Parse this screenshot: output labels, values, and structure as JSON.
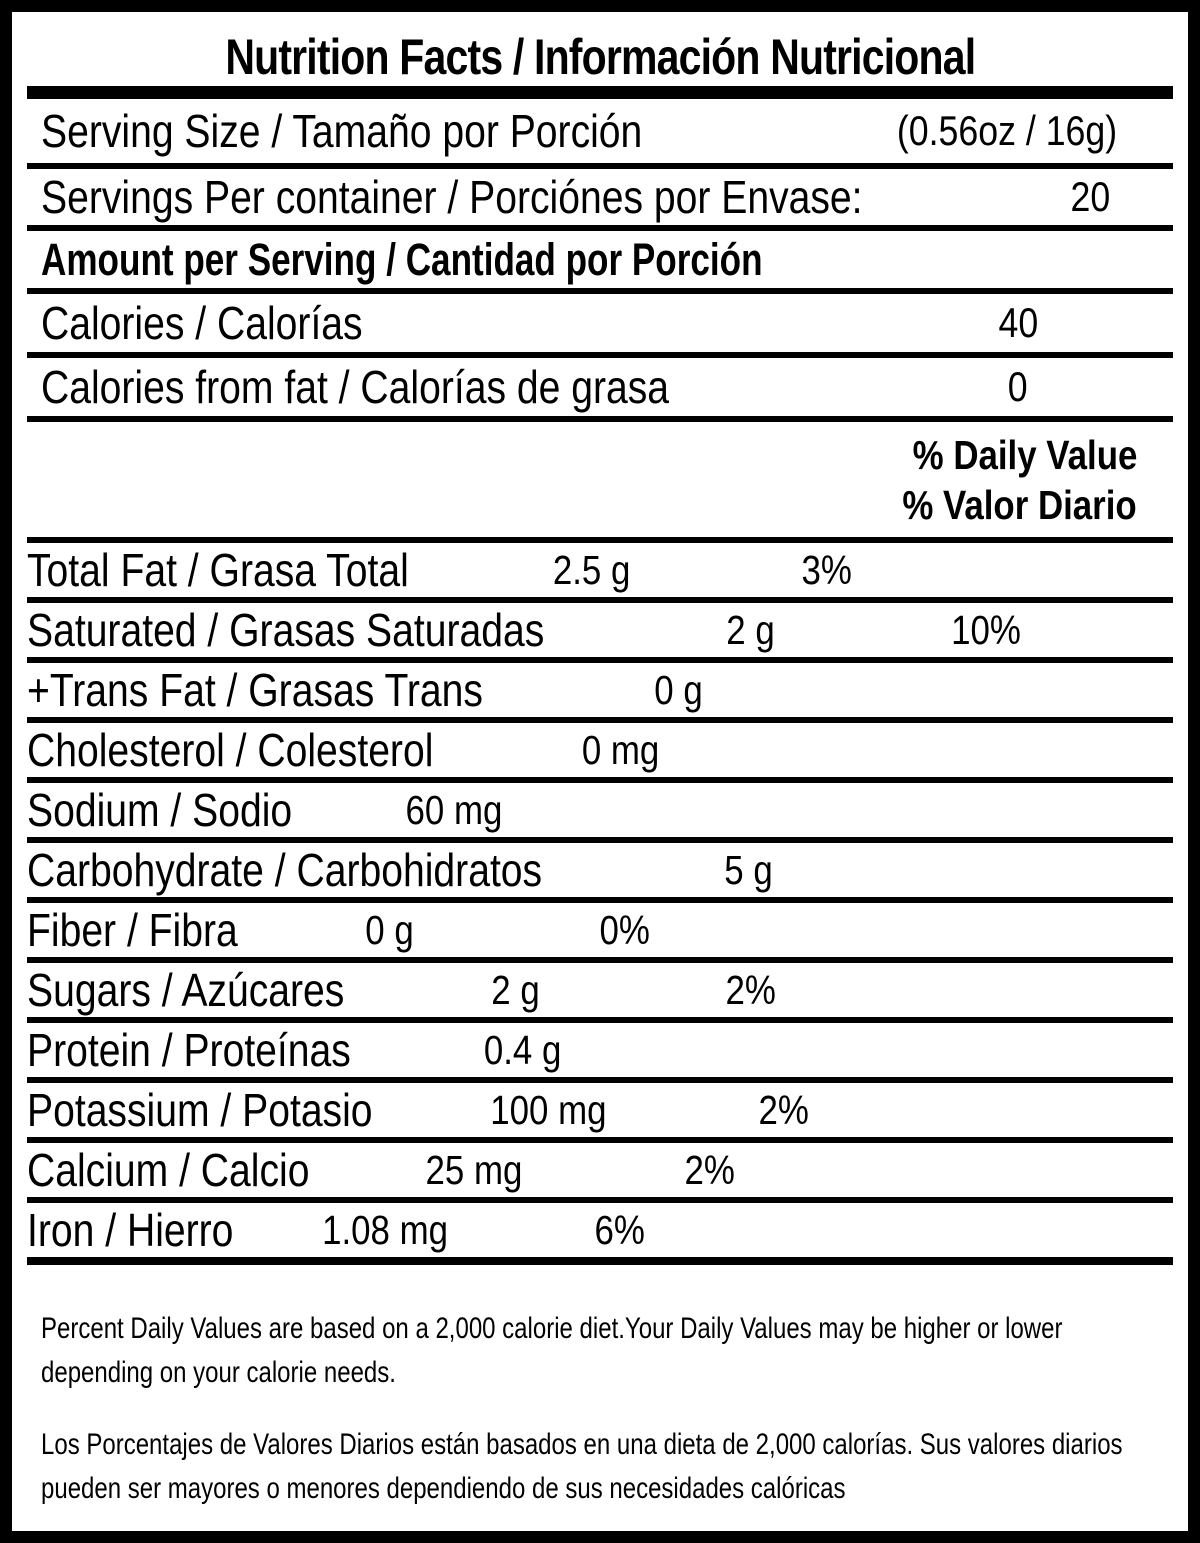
{
  "title": "Nutrition Facts / Información Nutricional",
  "serving": {
    "serving_size_label": "Serving Size / Tamaño por Porción",
    "serving_size_value": "(0.56oz / 16g)",
    "servings_per_container_label": "Servings Per container / Porciónes por Envase:",
    "servings_per_container_value": "20"
  },
  "amount_per_serving_heading": "Amount per Serving / Cantidad por Porción",
  "calories": {
    "label": "Calories / Calorías",
    "value": "40"
  },
  "calories_from_fat": {
    "label": "Calories from fat / Calorías de grasa",
    "value": "0"
  },
  "daily_value_header": {
    "line1": "% Daily Value",
    "line2": "% Valor Diario"
  },
  "nutrients": [
    {
      "label": "Total Fat / Grasa Total",
      "amount": "2.5 g",
      "dv": "3%"
    },
    {
      "label": "Saturated / Grasas Saturadas",
      "amount": "2 g",
      "dv": "10%"
    },
    {
      "label": "+Trans Fat / Grasas Trans",
      "amount": "0 g",
      "dv": ""
    },
    {
      "label": "Cholesterol / Colesterol",
      "amount": "0 mg",
      "dv": ""
    },
    {
      "label": "Sodium / Sodio",
      "amount": "60 mg",
      "dv": ""
    },
    {
      "label": "Carbohydrate / Carbohidratos",
      "amount": "5 g",
      "dv": ""
    },
    {
      "label": "Fiber / Fibra",
      "amount": "0 g",
      "dv": "0%"
    },
    {
      "label": "Sugars / Azúcares",
      "amount": "2 g",
      "dv": "2%"
    },
    {
      "label": "Protein / Proteínas",
      "amount": "0.4 g",
      "dv": ""
    },
    {
      "label": "Potassium / Potasio",
      "amount": "100 mg",
      "dv": "2%"
    },
    {
      "label": "Calcium / Calcio",
      "amount": "25 mg",
      "dv": "2%"
    },
    {
      "label": "Iron / Hierro",
      "amount": "1.08 mg",
      "dv": "6%"
    }
  ],
  "footnotes": {
    "english": "Percent Daily Values are based on a 2,000 calorie diet.Your Daily Values may be higher or lower depending on your calorie needs.",
    "spanish": "Los Porcentajes de Valores Diarios están basados en una dieta de 2,000 calorías. Sus valores diarios pueden ser mayores o menores dependiendo de sus necesidades calóricas"
  },
  "colors": {
    "ink": "#000000",
    "background": "#ffffff"
  }
}
